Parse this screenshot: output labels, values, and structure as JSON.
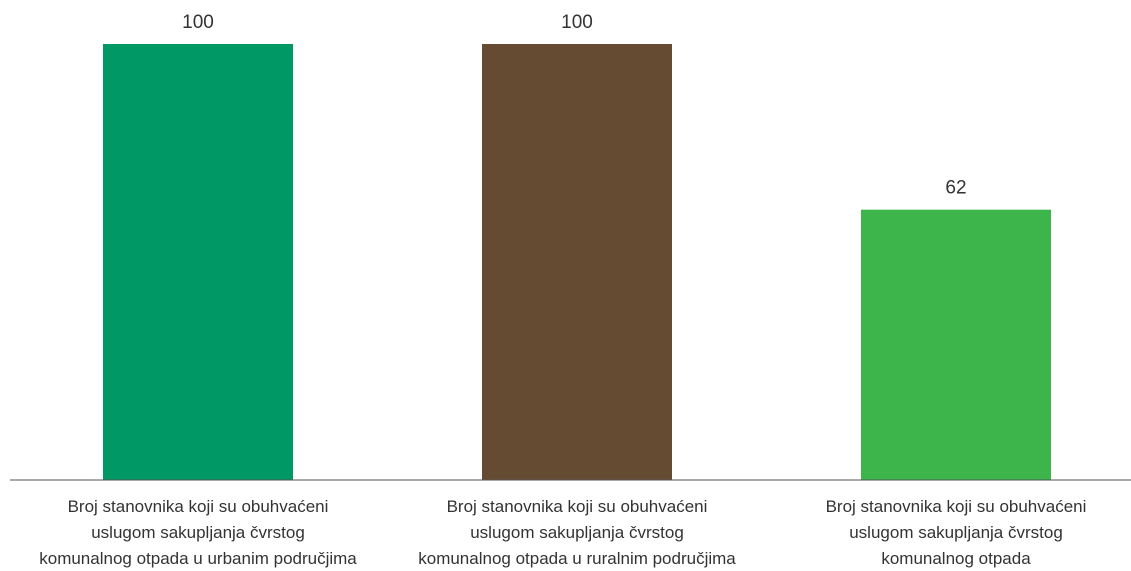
{
  "chart_data": {
    "type": "bar",
    "categories": [
      [
        "Broj stanovnika koji su obuhvaćeni",
        "uslugom sakupljanja čvrstog",
        "komunalnog otpada u urbanim područjima"
      ],
      [
        "Broj stanovnika koji su obuhvaćeni",
        "uslugom sakupljanja čvrstog",
        "komunalnog otpada u ruralnim područjima"
      ],
      [
        "Broj stanovnika koji su obuhvaćeni",
        "uslugom sakupljanja čvrstog",
        "komunalnog otpada"
      ]
    ],
    "values": [
      100,
      100,
      62
    ],
    "value_labels": [
      "100",
      "100",
      "62"
    ],
    "colors": [
      "#009966",
      "#664b33",
      "#3db54a"
    ],
    "axis_color": "#555555",
    "ylim": [
      0,
      100
    ],
    "grid": false,
    "legend": false,
    "title": "",
    "xlabel": "",
    "ylabel": ""
  }
}
